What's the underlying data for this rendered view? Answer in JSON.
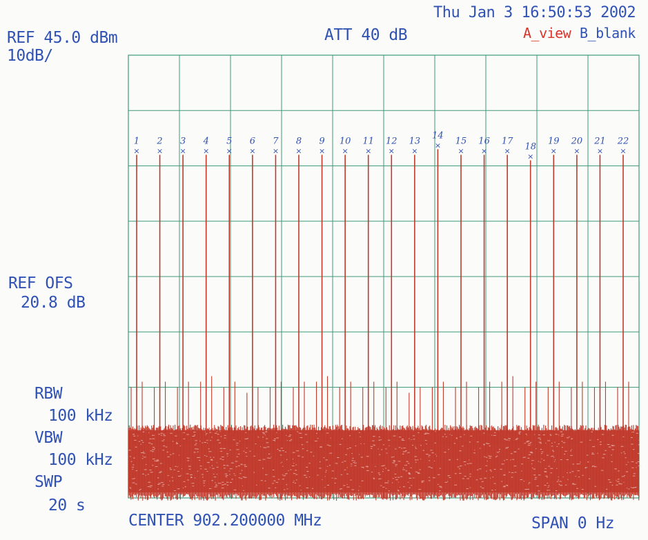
{
  "header": {
    "datetime": "Thu Jan  3 16:50:53 2002",
    "ref_level": "REF 45.0 dBm",
    "scale": "10dB/",
    "attenuation": "ATT 40 dB",
    "trace_a": "A_view",
    "trace_b": "B_blank"
  },
  "left_panel": {
    "ref_ofs_label": "REF OFS",
    "ref_ofs_value": "20.8 dB",
    "rbw_label": "RBW",
    "rbw_value": "100 kHz",
    "vbw_label": "VBW",
    "vbw_value": "100 kHz",
    "swp_label": "SWP",
    "swp_value": "20 s"
  },
  "footer": {
    "center": "CENTER 902.200000 MHz",
    "span": "SPAN 0 Hz"
  },
  "colors": {
    "trace": "#c0392b",
    "grid": "#3f9a78",
    "text": "#2f52b4",
    "trace_a_label": "#d9342b",
    "trace_b_label": "#2f52b4"
  },
  "chart_data": {
    "type": "line",
    "grid": true,
    "grid_divisions": {
      "x": 10,
      "y": 8
    },
    "ylim_dbm": [
      -35,
      45
    ],
    "noise_floor_dbm": -22,
    "markers": [
      "1",
      "2",
      "3",
      "4",
      "5",
      "6",
      "7",
      "8",
      "9",
      "10",
      "11",
      "12",
      "13",
      "14",
      "15",
      "16",
      "17",
      "18",
      "19",
      "20",
      "21",
      "22"
    ],
    "peaks_dbm": [
      27,
      27,
      27,
      27,
      27,
      27,
      27,
      27,
      27,
      27,
      27,
      27,
      27,
      28,
      27,
      27,
      27,
      26,
      27,
      27,
      27,
      27
    ],
    "side_lobes_dbm": [
      -15,
      -15,
      -15,
      -14,
      -15,
      -16,
      -15,
      -15,
      -14,
      -15,
      -15,
      -15,
      -16,
      -15,
      -15,
      -15,
      -14,
      -15,
      -15,
      -15,
      -15,
      -15
    ]
  }
}
